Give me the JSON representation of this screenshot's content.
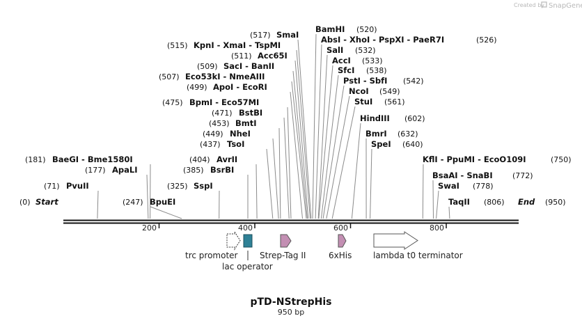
{
  "credit": {
    "text": "Created by",
    "brand": "SnapGene"
  },
  "title": "pTD-NStrepHis",
  "subtitle": "950 bp",
  "sequence_length": 950,
  "termini": {
    "start": {
      "label": "Start",
      "pos": "(0)",
      "value": 0
    },
    "end": {
      "label": "End",
      "pos": "(950)",
      "value": 950
    }
  },
  "ruler_ticks": [
    "200",
    "400",
    "600",
    "800"
  ],
  "sites": [
    {
      "label": "PvuII",
      "pos": "(71)",
      "value": 71
    },
    {
      "label": "ApaLI",
      "pos": "(177)",
      "value": 177
    },
    {
      "label": "BaeGI  -  Bme1580I",
      "pos": "(181)",
      "value": 181
    },
    {
      "label": "BpuEI",
      "pos": "(247)",
      "value": 247
    },
    {
      "label": "SspI",
      "pos": "(325)",
      "value": 325
    },
    {
      "label": "BsrBI",
      "pos": "(385)",
      "value": 385
    },
    {
      "label": "AvrII",
      "pos": "(404)",
      "value": 404
    },
    {
      "label": "TsoI",
      "pos": "(437)",
      "value": 437
    },
    {
      "label": "NheI",
      "pos": "(449)",
      "value": 449
    },
    {
      "label": "BmtI",
      "pos": "(453)",
      "value": 453
    },
    {
      "label": "BstBI",
      "pos": "(471)",
      "value": 471
    },
    {
      "label": "BpmI  -  Eco57MI",
      "pos": "(475)",
      "value": 475
    },
    {
      "label": "ApoI  -  EcoRI",
      "pos": "(499)",
      "value": 499
    },
    {
      "label": "Eco53kI  -  NmeAIII",
      "pos": "(507)",
      "value": 507
    },
    {
      "label": "SacI  -  BanII",
      "pos": "(509)",
      "value": 509
    },
    {
      "label": "Acc65I",
      "pos": "(511)",
      "value": 511
    },
    {
      "label": "KpnI  -  XmaI  -  TspMI",
      "pos": "(515)",
      "value": 515
    },
    {
      "label": "SmaI",
      "pos": "(517)",
      "value": 517
    },
    {
      "label": "BamHI",
      "pos": "(520)",
      "value": 520
    },
    {
      "label": "AbsI  -  XhoI  -  PspXI  -  PaeR7I",
      "pos": "(526)",
      "value": 526
    },
    {
      "label": "SalI",
      "pos": "(532)",
      "value": 532
    },
    {
      "label": "AccI",
      "pos": "(533)",
      "value": 533
    },
    {
      "label": "SfcI",
      "pos": "(538)",
      "value": 538
    },
    {
      "label": "PstI  -  SbfI",
      "pos": "(542)",
      "value": 542
    },
    {
      "label": "NcoI",
      "pos": "(549)",
      "value": 549
    },
    {
      "label": "StuI",
      "pos": "(561)",
      "value": 561
    },
    {
      "label": "HindIII",
      "pos": "(602)",
      "value": 602
    },
    {
      "label": "BmrI",
      "pos": "(632)",
      "value": 632
    },
    {
      "label": "SpeI",
      "pos": "(640)",
      "value": 640
    },
    {
      "label": "KflI  -  PpuMI  -  EcoO109I",
      "pos": "(750)",
      "value": 750
    },
    {
      "label": "BsaAI  -  SnaBI",
      "pos": "(772)",
      "value": 772
    },
    {
      "label": "SwaI",
      "pos": "(778)",
      "value": 778
    },
    {
      "label": "TaqII",
      "pos": "(806)",
      "value": 806
    }
  ],
  "features": [
    {
      "label": "trc promoter",
      "color": "#ffffff",
      "style": "dashed"
    },
    {
      "label": "lac operator",
      "color": "#2f8196",
      "style": "box"
    },
    {
      "label": "Strep-Tag II",
      "color": "#c38fb3",
      "style": "arrow"
    },
    {
      "label": "6xHis",
      "color": "#c38fb3",
      "style": "arrow"
    },
    {
      "label": "lambda t0 terminator",
      "color": "#ffffff",
      "style": "arrow"
    }
  ]
}
